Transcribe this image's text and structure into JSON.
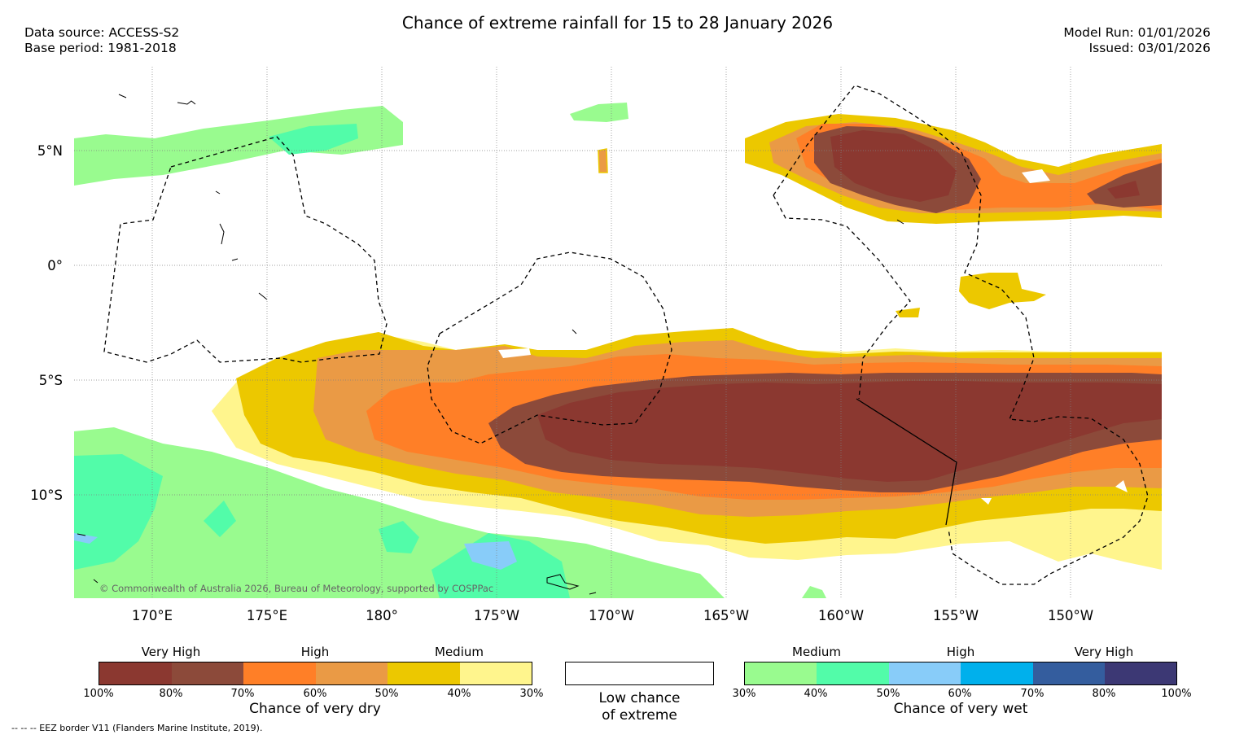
{
  "header": {
    "title": "Chance of extreme rainfall for 15 to 28 January 2026",
    "data_source": "Data source: ACCESS-S2",
    "base_period": "Base period: 1981-2018",
    "model_run": "Model Run: 01/01/2026",
    "issued": "Issued: 03/01/2026"
  },
  "map": {
    "lat_labels": [
      "5°N",
      "0°",
      "5°S",
      "10°S"
    ],
    "lon_labels": [
      "170°E",
      "175°E",
      "180°",
      "175°W",
      "170°W",
      "165°W",
      "160°W",
      "155°W",
      "150°W"
    ],
    "copyright": "© Commonwealth of Australia 2026, Bureau of Meteorology, supported by COSPPac"
  },
  "legend": {
    "dry": {
      "categories": [
        "Very High",
        "High",
        "Medium"
      ],
      "ticks": [
        "100%",
        "80%",
        "70%",
        "60%",
        "50%",
        "40%",
        "30%"
      ],
      "colors": [
        "#8b3830",
        "#8c4a3a",
        "#ff7f27",
        "#ea9a45",
        "#ecc800",
        "#fff58d"
      ],
      "caption": "Chance of very dry"
    },
    "low": {
      "line1": "Low chance",
      "line2": "of extreme"
    },
    "wet": {
      "categories": [
        "Medium",
        "High",
        "Very High"
      ],
      "ticks": [
        "30%",
        "40%",
        "50%",
        "60%",
        "70%",
        "80%",
        "100%"
      ],
      "colors": [
        "#99fb8f",
        "#52fca9",
        "#88ccf9",
        "#00b0ec",
        "#345d9e",
        "#3c3874"
      ],
      "caption": "Chance of very wet"
    }
  },
  "footer": {
    "eez_note": "-- -- -- EEZ border V11 (Flanders Marine Institute, 2019)."
  }
}
